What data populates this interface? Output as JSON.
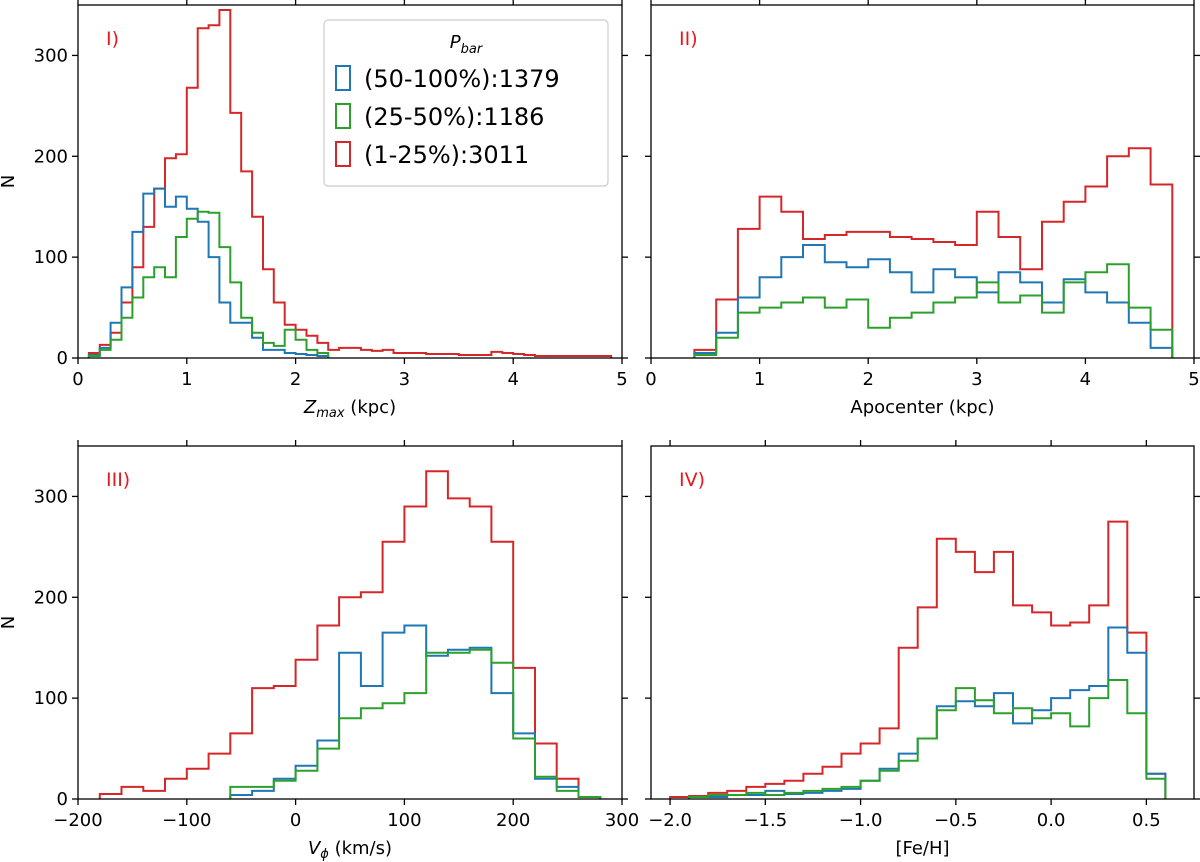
{
  "colors": {
    "blue": "#1f77b4",
    "green": "#2ca02c",
    "red": "#d62728",
    "axis": "#000000",
    "label_red": "#e41a1c"
  },
  "legend": {
    "title": "P",
    "title_sub": "bar",
    "entries": [
      {
        "label": "(50-100%):1379",
        "series": "blue"
      },
      {
        "label": "(25-50%):1186",
        "series": "green"
      },
      {
        "label": "(1-25%):3011",
        "series": "red"
      }
    ]
  },
  "chart_data": [
    {
      "type": "histogram",
      "panel_label": "I)",
      "xlabel_main": "Z",
      "xlabel_sub": "max",
      "xlabel_unit": " (kpc)",
      "ylabel": "N",
      "xlim": [
        0,
        5
      ],
      "ylim": [
        0,
        350
      ],
      "xticks": [
        0,
        1,
        2,
        3,
        4,
        5
      ],
      "xtick_labels": [
        "0",
        "1",
        "2",
        "3",
        "4",
        "5"
      ],
      "yticks": [
        0,
        100,
        200,
        300
      ],
      "ytick_labels": [
        "0",
        "100",
        "200",
        "300"
      ],
      "series": [
        {
          "name": "(1-25%):3011",
          "color": "red",
          "edges": [
            0.1,
            0.2,
            0.3,
            0.4,
            0.5,
            0.6,
            0.7,
            0.8,
            0.9,
            1.0,
            1.1,
            1.2,
            1.3,
            1.4,
            1.5,
            1.6,
            1.7,
            1.8,
            1.9,
            2.0,
            2.1,
            2.2,
            2.3,
            2.4,
            2.5,
            2.6,
            2.7,
            2.8,
            2.9,
            3.0,
            3.1,
            3.2,
            3.3,
            3.4,
            3.5,
            3.6,
            3.7,
            3.8,
            3.9,
            4.0,
            4.1,
            4.2,
            4.3,
            4.4,
            4.5,
            4.6,
            4.7,
            4.8,
            4.9
          ],
          "counts": [
            5,
            13,
            25,
            55,
            90,
            130,
            168,
            198,
            202,
            268,
            327,
            330,
            345,
            243,
            185,
            140,
            88,
            55,
            33,
            28,
            22,
            15,
            8,
            10,
            10,
            8,
            7,
            8,
            5,
            5,
            5,
            4,
            4,
            4,
            3,
            3,
            3,
            6,
            5,
            4,
            3,
            2,
            2,
            2,
            2,
            2,
            2,
            2
          ]
        },
        {
          "name": "(50-100%):1379",
          "color": "blue",
          "edges": [
            0.1,
            0.2,
            0.3,
            0.4,
            0.5,
            0.6,
            0.7,
            0.8,
            0.9,
            1.0,
            1.1,
            1.2,
            1.3,
            1.4,
            1.5,
            1.6,
            1.7,
            1.8,
            1.9,
            2.0,
            2.1,
            2.2,
            2.3
          ],
          "counts": [
            3,
            10,
            35,
            70,
            125,
            163,
            168,
            150,
            160,
            148,
            135,
            100,
            55,
            35,
            35,
            20,
            8,
            8,
            5,
            4,
            3,
            2
          ]
        },
        {
          "name": "(25-50%):1186",
          "color": "green",
          "edges": [
            0.1,
            0.2,
            0.3,
            0.4,
            0.5,
            0.6,
            0.7,
            0.8,
            0.9,
            1.0,
            1.1,
            1.2,
            1.3,
            1.4,
            1.5,
            1.6,
            1.7,
            1.8,
            1.9,
            2.0,
            2.1,
            2.2,
            2.3
          ],
          "counts": [
            2,
            8,
            18,
            40,
            60,
            80,
            90,
            80,
            120,
            138,
            145,
            144,
            110,
            75,
            40,
            25,
            15,
            12,
            28,
            18,
            8,
            5
          ]
        }
      ]
    },
    {
      "type": "histogram",
      "panel_label": "II)",
      "xlabel_main": "Apocenter (kpc)",
      "xlabel_sub": "",
      "xlabel_unit": "",
      "ylabel": "",
      "xlim": [
        0,
        5
      ],
      "ylim": [
        0,
        350
      ],
      "xticks": [
        0,
        1,
        2,
        3,
        4,
        5
      ],
      "xtick_labels": [
        "0",
        "1",
        "2",
        "3",
        "4",
        "5"
      ],
      "yticks": [
        0,
        100,
        200,
        300
      ],
      "ytick_labels": [],
      "series": [
        {
          "name": "(1-25%):3011",
          "color": "red",
          "edges": [
            0.4,
            0.6,
            0.8,
            1.0,
            1.2,
            1.4,
            1.6,
            1.8,
            2.0,
            2.2,
            2.4,
            2.6,
            2.8,
            3.0,
            3.2,
            3.4,
            3.6,
            3.8,
            4.0,
            4.2,
            4.4,
            4.6,
            4.8
          ],
          "counts": [
            8,
            58,
            128,
            160,
            145,
            118,
            122,
            125,
            125,
            120,
            118,
            115,
            112,
            145,
            120,
            88,
            135,
            155,
            170,
            200,
            208,
            172
          ]
        },
        {
          "name": "(50-100%):1379",
          "color": "blue",
          "edges": [
            0.4,
            0.6,
            0.8,
            1.0,
            1.2,
            1.4,
            1.6,
            1.8,
            2.0,
            2.2,
            2.4,
            2.6,
            2.8,
            3.0,
            3.2,
            3.4,
            3.6,
            3.8,
            4.0,
            4.2,
            4.4,
            4.6,
            4.8
          ],
          "counts": [
            5,
            25,
            60,
            80,
            100,
            112,
            95,
            90,
            98,
            85,
            65,
            88,
            80,
            65,
            85,
            75,
            55,
            78,
            65,
            55,
            35,
            10
          ]
        },
        {
          "name": "(25-50%):1186",
          "color": "green",
          "edges": [
            0.4,
            0.6,
            0.8,
            1.0,
            1.2,
            1.4,
            1.6,
            1.8,
            2.0,
            2.2,
            2.4,
            2.6,
            2.8,
            3.0,
            3.2,
            3.4,
            3.6,
            3.8,
            4.0,
            4.2,
            4.4,
            4.6,
            4.8
          ],
          "counts": [
            3,
            20,
            45,
            50,
            55,
            60,
            50,
            58,
            30,
            40,
            45,
            55,
            60,
            75,
            55,
            62,
            45,
            75,
            85,
            93,
            50,
            28
          ]
        }
      ]
    },
    {
      "type": "histogram",
      "panel_label": "III)",
      "xlabel_main": "V",
      "xlabel_sub": "ϕ",
      "xlabel_unit": " (km/s)",
      "ylabel": "N",
      "xlim": [
        -200,
        300
      ],
      "ylim": [
        0,
        350
      ],
      "xticks": [
        -200,
        -100,
        0,
        100,
        200,
        300
      ],
      "xtick_labels": [
        "−200",
        "−100",
        "0",
        "100",
        "200",
        "300"
      ],
      "yticks": [
        0,
        100,
        200,
        300
      ],
      "ytick_labels": [
        "0",
        "100",
        "200",
        "300"
      ],
      "series": [
        {
          "name": "(1-25%):3011",
          "color": "red",
          "edges": [
            -180,
            -160,
            -140,
            -120,
            -100,
            -80,
            -60,
            -40,
            -20,
            0,
            20,
            40,
            60,
            80,
            100,
            120,
            140,
            160,
            180,
            200,
            220,
            240,
            260,
            280
          ],
          "counts": [
            5,
            12,
            8,
            20,
            30,
            45,
            65,
            110,
            112,
            138,
            172,
            200,
            205,
            255,
            290,
            325,
            298,
            290,
            255,
            130,
            55,
            20,
            2
          ]
        },
        {
          "name": "(50-100%):1379",
          "color": "blue",
          "edges": [
            -60,
            -40,
            -20,
            0,
            20,
            40,
            60,
            80,
            100,
            120,
            140,
            160,
            180,
            200,
            220,
            240,
            260,
            280
          ],
          "counts": [
            4,
            8,
            20,
            33,
            58,
            145,
            112,
            165,
            172,
            142,
            148,
            150,
            105,
            65,
            20,
            12,
            2
          ]
        },
        {
          "name": "(25-50%):1186",
          "color": "green",
          "edges": [
            -60,
            -40,
            -20,
            0,
            20,
            40,
            60,
            80,
            100,
            120,
            140,
            160,
            180,
            200,
            220,
            240,
            260,
            280
          ],
          "counts": [
            12,
            12,
            18,
            28,
            50,
            80,
            90,
            95,
            105,
            145,
            145,
            148,
            135,
            60,
            22,
            8,
            2
          ]
        }
      ]
    },
    {
      "type": "histogram",
      "panel_label": "IV)",
      "xlabel_main": "[Fe/H]",
      "xlabel_sub": "",
      "xlabel_unit": "",
      "ylabel": "",
      "xlim": [
        -2.1,
        0.75
      ],
      "ylim": [
        0,
        350
      ],
      "xticks": [
        -2.0,
        -1.5,
        -1.0,
        -0.5,
        0.0,
        0.5
      ],
      "xtick_labels": [
        "−2.0",
        "−1.5",
        "−1.0",
        "−0.5",
        "0.0",
        "0.5"
      ],
      "yticks": [
        0,
        100,
        200,
        300
      ],
      "ytick_labels": [],
      "series": [
        {
          "name": "(1-25%):3011",
          "color": "red",
          "edges": [
            -2.0,
            -1.9,
            -1.8,
            -1.7,
            -1.6,
            -1.5,
            -1.4,
            -1.3,
            -1.2,
            -1.1,
            -1.0,
            -0.9,
            -0.8,
            -0.7,
            -0.6,
            -0.5,
            -0.4,
            -0.3,
            -0.2,
            -0.1,
            0.0,
            0.1,
            0.2,
            0.3,
            0.4,
            0.5,
            0.6
          ],
          "counts": [
            2,
            3,
            6,
            8,
            12,
            15,
            18,
            25,
            32,
            45,
            55,
            70,
            150,
            190,
            258,
            245,
            225,
            245,
            192,
            185,
            172,
            175,
            192,
            275,
            165,
            25
          ]
        },
        {
          "name": "(50-100%):1379",
          "color": "blue",
          "edges": [
            -1.9,
            -1.8,
            -1.7,
            -1.6,
            -1.5,
            -1.4,
            -1.3,
            -1.2,
            -1.1,
            -1.0,
            -0.9,
            -0.8,
            -0.7,
            -0.6,
            -0.5,
            -0.4,
            -0.3,
            -0.2,
            -0.1,
            0.0,
            0.1,
            0.2,
            0.3,
            0.4,
            0.5,
            0.6
          ],
          "counts": [
            2,
            2,
            4,
            4,
            8,
            5,
            6,
            8,
            10,
            18,
            30,
            45,
            60,
            92,
            97,
            92,
            105,
            75,
            88,
            100,
            108,
            112,
            170,
            145,
            25
          ]
        },
        {
          "name": "(25-50%):1186",
          "color": "green",
          "edges": [
            -1.9,
            -1.8,
            -1.7,
            -1.6,
            -1.5,
            -1.4,
            -1.3,
            -1.2,
            -1.1,
            -1.0,
            -0.9,
            -0.8,
            -0.7,
            -0.6,
            -0.5,
            -0.4,
            -0.3,
            -0.2,
            -0.1,
            0.0,
            0.1,
            0.2,
            0.3,
            0.4,
            0.5,
            0.6
          ],
          "counts": [
            2,
            4,
            4,
            6,
            4,
            6,
            8,
            10,
            12,
            18,
            28,
            38,
            60,
            88,
            110,
            98,
            85,
            90,
            80,
            85,
            72,
            100,
            118,
            85,
            20
          ]
        }
      ]
    }
  ]
}
